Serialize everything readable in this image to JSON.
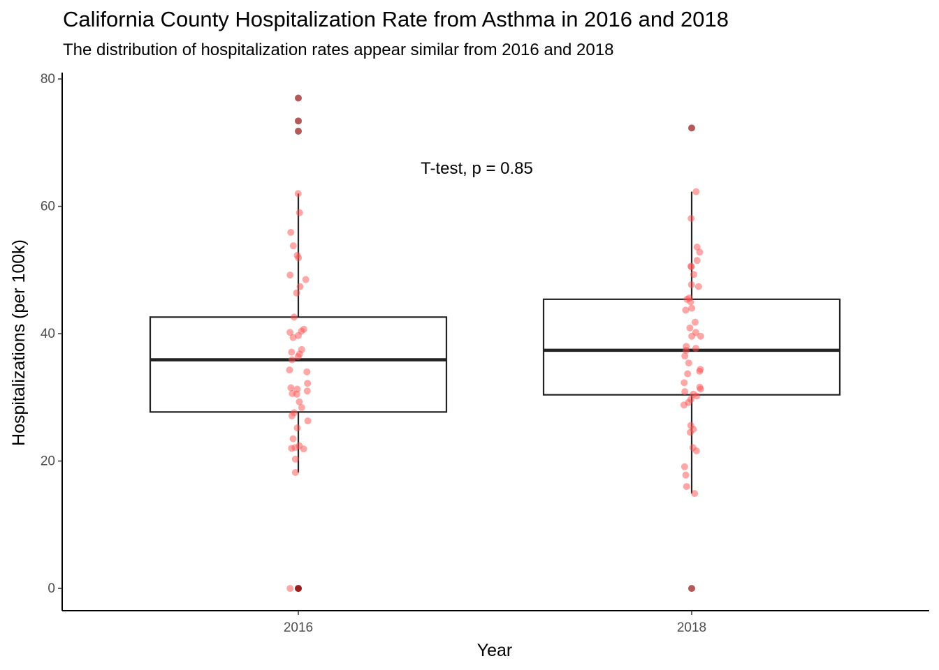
{
  "chart_data": {
    "type": "box",
    "title": "California County Hospitalization Rate from Asthma in 2016 and 2018",
    "subtitle": "The distribution of hospitalization rates appear similar from 2016 and 2018",
    "xlabel": "Year",
    "ylabel": "Hospitalizations (per 100k)",
    "ylim": [
      -3.5,
      81
    ],
    "yticks": [
      0,
      20,
      40,
      60,
      80
    ],
    "annotation": {
      "text": "T-test, p = 0.85",
      "x_between": [
        "2016",
        "2018"
      ],
      "y": 66
    },
    "colors": {
      "point": "#ff4d4d",
      "outlier": "#8b0000",
      "box": "#222222"
    },
    "grid": false,
    "legend": "none",
    "categories": [
      "2016",
      "2018"
    ],
    "series": [
      {
        "category": "2016",
        "box": {
          "q1": 27.7,
          "median": 35.9,
          "q3": 42.6,
          "whisker_low": 18.2,
          "whisker_high": 62.0
        },
        "outliers": [
          77.0,
          73.4,
          71.8,
          0,
          0
        ],
        "points": [
          62.0,
          59.0,
          55.9,
          53.8,
          52.3,
          51.9,
          49.2,
          48.5,
          47.4,
          46.4,
          42.6,
          40.7,
          40.4,
          40.2,
          39.7,
          39.4,
          37.5,
          37.1,
          36.8,
          36.4,
          35.9,
          34.3,
          34.0,
          32.2,
          31.5,
          31.3,
          31.0,
          30.6,
          30.5,
          29.3,
          28.4,
          27.6,
          27.1,
          26.3,
          25.2,
          23.5,
          22.4,
          22.1,
          22.0,
          21.9,
          20.3,
          18.2,
          0
        ]
      },
      {
        "category": "2018",
        "box": {
          "q1": 30.4,
          "median": 37.4,
          "q3": 45.4,
          "whisker_low": 14.9,
          "whisker_high": 62.3
        },
        "outliers": [
          72.3,
          0
        ],
        "points": [
          62.3,
          58.1,
          53.6,
          52.8,
          51.5,
          50.6,
          50.5,
          49.3,
          47.7,
          47.4,
          45.6,
          45.4,
          45.0,
          44.0,
          43.7,
          41.8,
          40.9,
          40.2,
          39.6,
          39.6,
          38.0,
          37.7,
          37.4,
          36.5,
          35.4,
          34.4,
          34.1,
          33.7,
          32.3,
          31.6,
          31.3,
          30.9,
          30.5,
          30.2,
          29.7,
          29.2,
          28.8,
          25.6,
          25.0,
          24.5,
          22.1,
          21.6,
          19.1,
          17.8,
          16.0,
          14.9
        ]
      }
    ]
  }
}
